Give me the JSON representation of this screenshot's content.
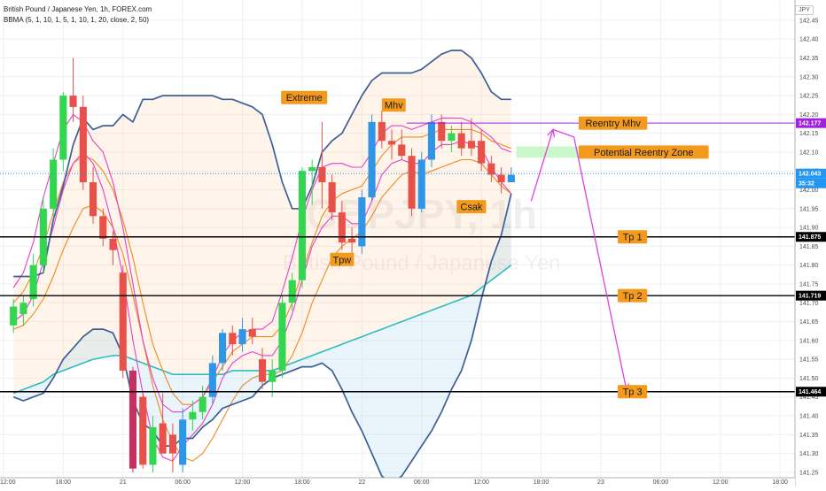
{
  "header": {
    "title": "British Pound / Japanese Yen, 1h, FOREX.com",
    "indicator": "BBMA (5, 1, 10, 1, 5, 1, 10, 1, 20, close, 2, 50)",
    "currency": "JPY"
  },
  "watermark": {
    "symbol": "GBPJPY, 1h",
    "name": "British Pound / Japanese Yen"
  },
  "colors": {
    "bull": "#33d64f",
    "bear": "#e8504a",
    "blue_bull": "#2f95e6",
    "dark_bear": "#c43060",
    "band": "#3d5f96",
    "ma_pink": "#e83fc8",
    "ma_orange": "#ef8a20",
    "ema50": "#2cbdc0",
    "label_bg": "#f39a1e",
    "line": "#000000",
    "reentry": "#a020e0",
    "price": "#2196f3",
    "zone": "#b9f5b9",
    "arrow": "#e040e0"
  },
  "price_badge": {
    "price": "142.043",
    "timer": "35:32"
  },
  "chart_data": {
    "type": "candlestick",
    "symbol": "GBPJPY",
    "timeframe": "1h",
    "y_ticks": [
      "142.45",
      "142.40",
      "142.35",
      "142.30",
      "142.25",
      "142.20",
      "142.15",
      "142.10",
      "142.05",
      "142.00",
      "141.95",
      "141.90",
      "141.85",
      "141.80",
      "141.75",
      "141.70",
      "141.65",
      "141.60",
      "141.55",
      "141.50",
      "141.45",
      "141.40",
      "141.35",
      "141.30",
      "141.25"
    ],
    "x_ticks": [
      {
        "bar": -1,
        "label": "12:00"
      },
      {
        "bar": 5,
        "label": "18:00"
      },
      {
        "bar": 11,
        "label": "21"
      },
      {
        "bar": 17,
        "label": "06:00"
      },
      {
        "bar": 23,
        "label": "12:00"
      },
      {
        "bar": 29,
        "label": "18:00"
      },
      {
        "bar": 35,
        "label": "22"
      },
      {
        "bar": 41,
        "label": "06:00"
      },
      {
        "bar": 47,
        "label": "12:00"
      },
      {
        "bar": 53,
        "label": "18:00"
      },
      {
        "bar": 59,
        "label": "23"
      },
      {
        "bar": 65,
        "label": "06:00"
      },
      {
        "bar": 71,
        "label": "12:00"
      },
      {
        "bar": 77,
        "label": "18:00"
      }
    ],
    "ylim": [
      141.245,
      142.485
    ],
    "xlim_bars": [
      -1.35,
      78.5
    ],
    "candles": [
      {
        "o": 141.64,
        "h": 141.71,
        "l": 141.62,
        "c": 141.69,
        "k": "up"
      },
      {
        "o": 141.67,
        "h": 141.72,
        "l": 141.64,
        "c": 141.7,
        "k": "up"
      },
      {
        "o": 141.71,
        "h": 141.83,
        "l": 141.69,
        "c": 141.8,
        "k": "up"
      },
      {
        "o": 141.8,
        "h": 141.98,
        "l": 141.78,
        "c": 141.95,
        "k": "up"
      },
      {
        "o": 141.95,
        "h": 142.11,
        "l": 141.93,
        "c": 142.08,
        "k": "up"
      },
      {
        "o": 142.08,
        "h": 142.26,
        "l": 142.05,
        "c": 142.25,
        "k": "up"
      },
      {
        "o": 142.25,
        "h": 142.35,
        "l": 142.18,
        "c": 142.22,
        "k": "down"
      },
      {
        "o": 142.22,
        "h": 142.25,
        "l": 142.0,
        "c": 142.02,
        "k": "down"
      },
      {
        "o": 142.02,
        "h": 142.06,
        "l": 141.91,
        "c": 141.93,
        "k": "down"
      },
      {
        "o": 141.93,
        "h": 141.95,
        "l": 141.85,
        "c": 141.87,
        "k": "down"
      },
      {
        "o": 141.87,
        "h": 141.89,
        "l": 141.8,
        "c": 141.84,
        "k": "down"
      },
      {
        "o": 141.78,
        "h": 141.8,
        "l": 141.5,
        "c": 141.52,
        "k": "down"
      },
      {
        "o": 141.52,
        "h": 141.53,
        "l": 141.25,
        "c": 141.26,
        "k": "darkdown"
      },
      {
        "o": 141.45,
        "h": 141.46,
        "l": 141.26,
        "c": 141.27,
        "k": "down"
      },
      {
        "o": 141.27,
        "h": 141.4,
        "l": 141.25,
        "c": 141.37,
        "k": "up"
      },
      {
        "o": 141.38,
        "h": 141.46,
        "l": 141.3,
        "c": 141.3,
        "k": "down"
      },
      {
        "o": 141.3,
        "h": 141.38,
        "l": 141.25,
        "c": 141.35,
        "k": "down"
      },
      {
        "o": 141.27,
        "h": 141.42,
        "l": 141.25,
        "c": 141.39,
        "k": "blueup"
      },
      {
        "o": 141.39,
        "h": 141.44,
        "l": 141.36,
        "c": 141.41,
        "k": "up"
      },
      {
        "o": 141.41,
        "h": 141.48,
        "l": 141.39,
        "c": 141.45,
        "k": "up"
      },
      {
        "o": 141.45,
        "h": 141.56,
        "l": 141.43,
        "c": 141.54,
        "k": "blueup"
      },
      {
        "o": 141.54,
        "h": 141.63,
        "l": 141.52,
        "c": 141.62,
        "k": "blueup"
      },
      {
        "o": 141.62,
        "h": 141.64,
        "l": 141.56,
        "c": 141.59,
        "k": "down"
      },
      {
        "o": 141.59,
        "h": 141.66,
        "l": 141.57,
        "c": 141.63,
        "k": "blueup"
      },
      {
        "o": 141.63,
        "h": 141.66,
        "l": 141.59,
        "c": 141.61,
        "k": "down"
      },
      {
        "o": 141.55,
        "h": 141.58,
        "l": 141.47,
        "c": 141.49,
        "k": "down"
      },
      {
        "o": 141.49,
        "h": 141.55,
        "l": 141.45,
        "c": 141.52,
        "k": "up"
      },
      {
        "o": 141.52,
        "h": 141.72,
        "l": 141.5,
        "c": 141.7,
        "k": "up"
      },
      {
        "o": 141.7,
        "h": 141.78,
        "l": 141.68,
        "c": 141.76,
        "k": "up"
      },
      {
        "o": 141.76,
        "h": 142.06,
        "l": 141.74,
        "c": 142.05,
        "k": "up"
      },
      {
        "o": 142.05,
        "h": 142.08,
        "l": 141.96,
        "c": 142.06,
        "k": "up"
      },
      {
        "o": 142.06,
        "h": 142.18,
        "l": 141.95,
        "c": 142.02,
        "k": "down"
      },
      {
        "o": 142.02,
        "h": 142.04,
        "l": 141.92,
        "c": 141.94,
        "k": "down"
      },
      {
        "o": 141.94,
        "h": 141.97,
        "l": 141.84,
        "c": 141.86,
        "k": "down"
      },
      {
        "o": 141.86,
        "h": 141.9,
        "l": 141.83,
        "c": 141.87,
        "k": "down"
      },
      {
        "o": 141.85,
        "h": 142.0,
        "l": 141.83,
        "c": 141.98,
        "k": "blueup"
      },
      {
        "o": 141.98,
        "h": 142.2,
        "l": 141.97,
        "c": 142.18,
        "k": "blueup"
      },
      {
        "o": 142.18,
        "h": 142.21,
        "l": 142.11,
        "c": 142.13,
        "k": "down"
      },
      {
        "o": 142.13,
        "h": 142.16,
        "l": 142.08,
        "c": 142.12,
        "k": "down"
      },
      {
        "o": 142.12,
        "h": 142.16,
        "l": 142.08,
        "c": 142.09,
        "k": "down"
      },
      {
        "o": 142.09,
        "h": 142.11,
        "l": 141.93,
        "c": 141.95,
        "k": "down"
      },
      {
        "o": 141.95,
        "h": 142.1,
        "l": 141.94,
        "c": 142.08,
        "k": "blueup"
      },
      {
        "o": 142.08,
        "h": 142.2,
        "l": 142.06,
        "c": 142.18,
        "k": "blueup"
      },
      {
        "o": 142.18,
        "h": 142.2,
        "l": 142.11,
        "c": 142.13,
        "k": "down"
      },
      {
        "o": 142.13,
        "h": 142.17,
        "l": 142.1,
        "c": 142.15,
        "k": "up"
      },
      {
        "o": 142.15,
        "h": 142.18,
        "l": 142.09,
        "c": 142.11,
        "k": "down"
      },
      {
        "o": 142.11,
        "h": 142.19,
        "l": 142.09,
        "c": 142.13,
        "k": "down"
      },
      {
        "o": 142.13,
        "h": 142.16,
        "l": 142.05,
        "c": 142.07,
        "k": "down"
      },
      {
        "o": 142.07,
        "h": 142.09,
        "l": 142.02,
        "c": 142.04,
        "k": "down"
      },
      {
        "o": 142.04,
        "h": 142.06,
        "l": 141.99,
        "c": 142.02,
        "k": "down"
      },
      {
        "o": 142.02,
        "h": 142.06,
        "l": 142.02,
        "c": 142.04,
        "k": "blueup"
      }
    ],
    "lines": {
      "upper_band": [
        141.77,
        141.77,
        141.77,
        141.78,
        141.92,
        142.01,
        142.12,
        142.19,
        142.16,
        142.17,
        142.17,
        142.2,
        142.18,
        142.24,
        142.24,
        142.25,
        142.25,
        142.25,
        142.25,
        142.25,
        142.25,
        142.24,
        142.24,
        142.23,
        142.22,
        142.2,
        142.12,
        142.02,
        141.95,
        141.95,
        142.01,
        142.1,
        142.13,
        142.15,
        142.2,
        142.25,
        142.29,
        142.31,
        142.31,
        142.31,
        142.31,
        142.32,
        142.34,
        142.36,
        142.37,
        142.37,
        142.35,
        142.31,
        142.26,
        142.24,
        142.24
      ],
      "lower_band": [
        141.45,
        141.44,
        141.45,
        141.46,
        141.5,
        141.55,
        141.58,
        141.61,
        141.63,
        141.63,
        141.62,
        141.56,
        141.44,
        141.38,
        141.36,
        141.32,
        141.32,
        141.34,
        141.34,
        141.37,
        141.39,
        141.42,
        141.43,
        141.44,
        141.45,
        141.48,
        141.5,
        141.51,
        141.52,
        141.53,
        141.53,
        141.54,
        141.52,
        141.47,
        141.41,
        141.36,
        141.3,
        141.24,
        141.22,
        141.24,
        141.28,
        141.32,
        141.36,
        141.41,
        141.47,
        141.52,
        141.6,
        141.71,
        141.81,
        141.88,
        141.99
      ],
      "ma_pink_high": [
        141.74,
        141.78,
        141.86,
        141.98,
        142.07,
        142.16,
        142.2,
        142.18,
        142.13,
        142.1,
        142.02,
        141.9,
        141.75,
        141.6,
        141.5,
        141.43,
        141.41,
        141.41,
        141.43,
        141.45,
        141.5,
        141.56,
        141.6,
        141.62,
        141.63,
        141.63,
        141.65,
        141.73,
        141.82,
        141.92,
        142.0,
        142.06,
        142.07,
        142.07,
        142.06,
        142.06,
        142.1,
        142.15,
        142.17,
        142.17,
        142.16,
        142.17,
        142.18,
        142.19,
        142.19,
        142.19,
        142.18,
        142.16,
        142.14,
        142.11,
        142.1
      ],
      "ma_pink_low": [
        141.65,
        141.67,
        141.72,
        141.81,
        141.9,
        142.0,
        142.07,
        142.1,
        142.07,
        142.0,
        141.9,
        141.77,
        141.6,
        141.46,
        141.34,
        141.29,
        141.28,
        141.32,
        141.35,
        141.38,
        141.43,
        141.5,
        141.54,
        141.56,
        141.57,
        141.56,
        141.56,
        141.6,
        141.67,
        141.76,
        141.85,
        141.9,
        141.93,
        141.93,
        141.91,
        141.91,
        141.97,
        142.04,
        142.07,
        142.08,
        142.07,
        142.07,
        142.1,
        142.12,
        142.12,
        142.13,
        142.12,
        142.11,
        142.06,
        142.02,
        141.99
      ],
      "ma_orange_high": [
        141.7,
        141.73,
        141.78,
        141.85,
        141.94,
        142.02,
        142.07,
        142.09,
        142.08,
        142.05,
        142.0,
        141.92,
        141.82,
        141.7,
        141.59,
        141.52,
        141.46,
        141.43,
        141.43,
        141.45,
        141.49,
        141.53,
        141.57,
        141.59,
        141.61,
        141.61,
        141.61,
        141.64,
        141.7,
        141.78,
        141.86,
        141.93,
        141.97,
        141.99,
        142.0,
        142.01,
        142.05,
        142.09,
        142.12,
        142.14,
        142.14,
        142.14,
        142.15,
        142.16,
        142.16,
        142.16,
        142.16,
        142.15,
        142.13,
        142.12,
        142.11
      ],
      "ma_orange_low": [
        141.63,
        141.64,
        141.67,
        141.71,
        141.77,
        141.84,
        141.9,
        141.95,
        141.96,
        141.94,
        141.9,
        141.83,
        141.72,
        141.6,
        141.48,
        141.39,
        141.33,
        141.29,
        141.28,
        141.3,
        141.34,
        141.39,
        141.44,
        141.48,
        141.5,
        141.51,
        141.51,
        141.52,
        141.56,
        141.62,
        141.7,
        141.76,
        141.82,
        141.85,
        141.87,
        141.89,
        141.93,
        141.98,
        142.01,
        142.04,
        142.05,
        142.04,
        142.05,
        142.06,
        142.07,
        142.08,
        142.08,
        142.07,
        142.04,
        142.01,
        141.99
      ],
      "ema50": [
        141.46,
        141.47,
        141.48,
        141.49,
        141.51,
        141.52,
        141.53,
        141.54,
        141.55,
        141.555,
        141.56,
        141.56,
        141.55,
        141.54,
        141.53,
        141.52,
        141.51,
        141.51,
        141.51,
        141.51,
        141.51,
        141.51,
        141.52,
        141.52,
        141.52,
        141.52,
        141.52,
        141.53,
        141.54,
        141.55,
        141.56,
        141.57,
        141.58,
        141.59,
        141.6,
        141.61,
        141.62,
        141.63,
        141.64,
        141.65,
        141.66,
        141.67,
        141.68,
        141.69,
        141.7,
        141.71,
        141.72,
        141.74,
        141.76,
        141.78,
        141.8
      ]
    },
    "horizontal_levels": [
      {
        "price": 142.177,
        "label": "Reentry Mhv",
        "badge": "142.177"
      },
      {
        "price": 141.875,
        "label": "Tp 1",
        "badge": "141.875"
      },
      {
        "price": 141.719,
        "label": "Tp 2",
        "badge": "141.719"
      },
      {
        "price": 141.464,
        "label": "Tp 3",
        "badge": "141.464"
      }
    ],
    "zone": {
      "label": "Potential Reentry Zone",
      "from_bar": 50.5,
      "to_bar": 59.5,
      "low": 142.085,
      "high": 142.115
    },
    "annotations": [
      {
        "text": "Extreme",
        "bar": 29.2,
        "price": 142.245
      },
      {
        "text": "Mhv",
        "bar": 38.2,
        "price": 142.225
      },
      {
        "text": "Tpw",
        "bar": 33.0,
        "price": 141.815
      },
      {
        "text": "Csak",
        "bar": 46.0,
        "price": 141.955
      }
    ],
    "projection": [
      {
        "bar": 52.0,
        "price": 141.97
      },
      {
        "bar": 54.2,
        "price": 142.16
      },
      {
        "bar": 56.3,
        "price": 142.14
      },
      {
        "bar": 61.6,
        "price": 141.465
      }
    ]
  }
}
